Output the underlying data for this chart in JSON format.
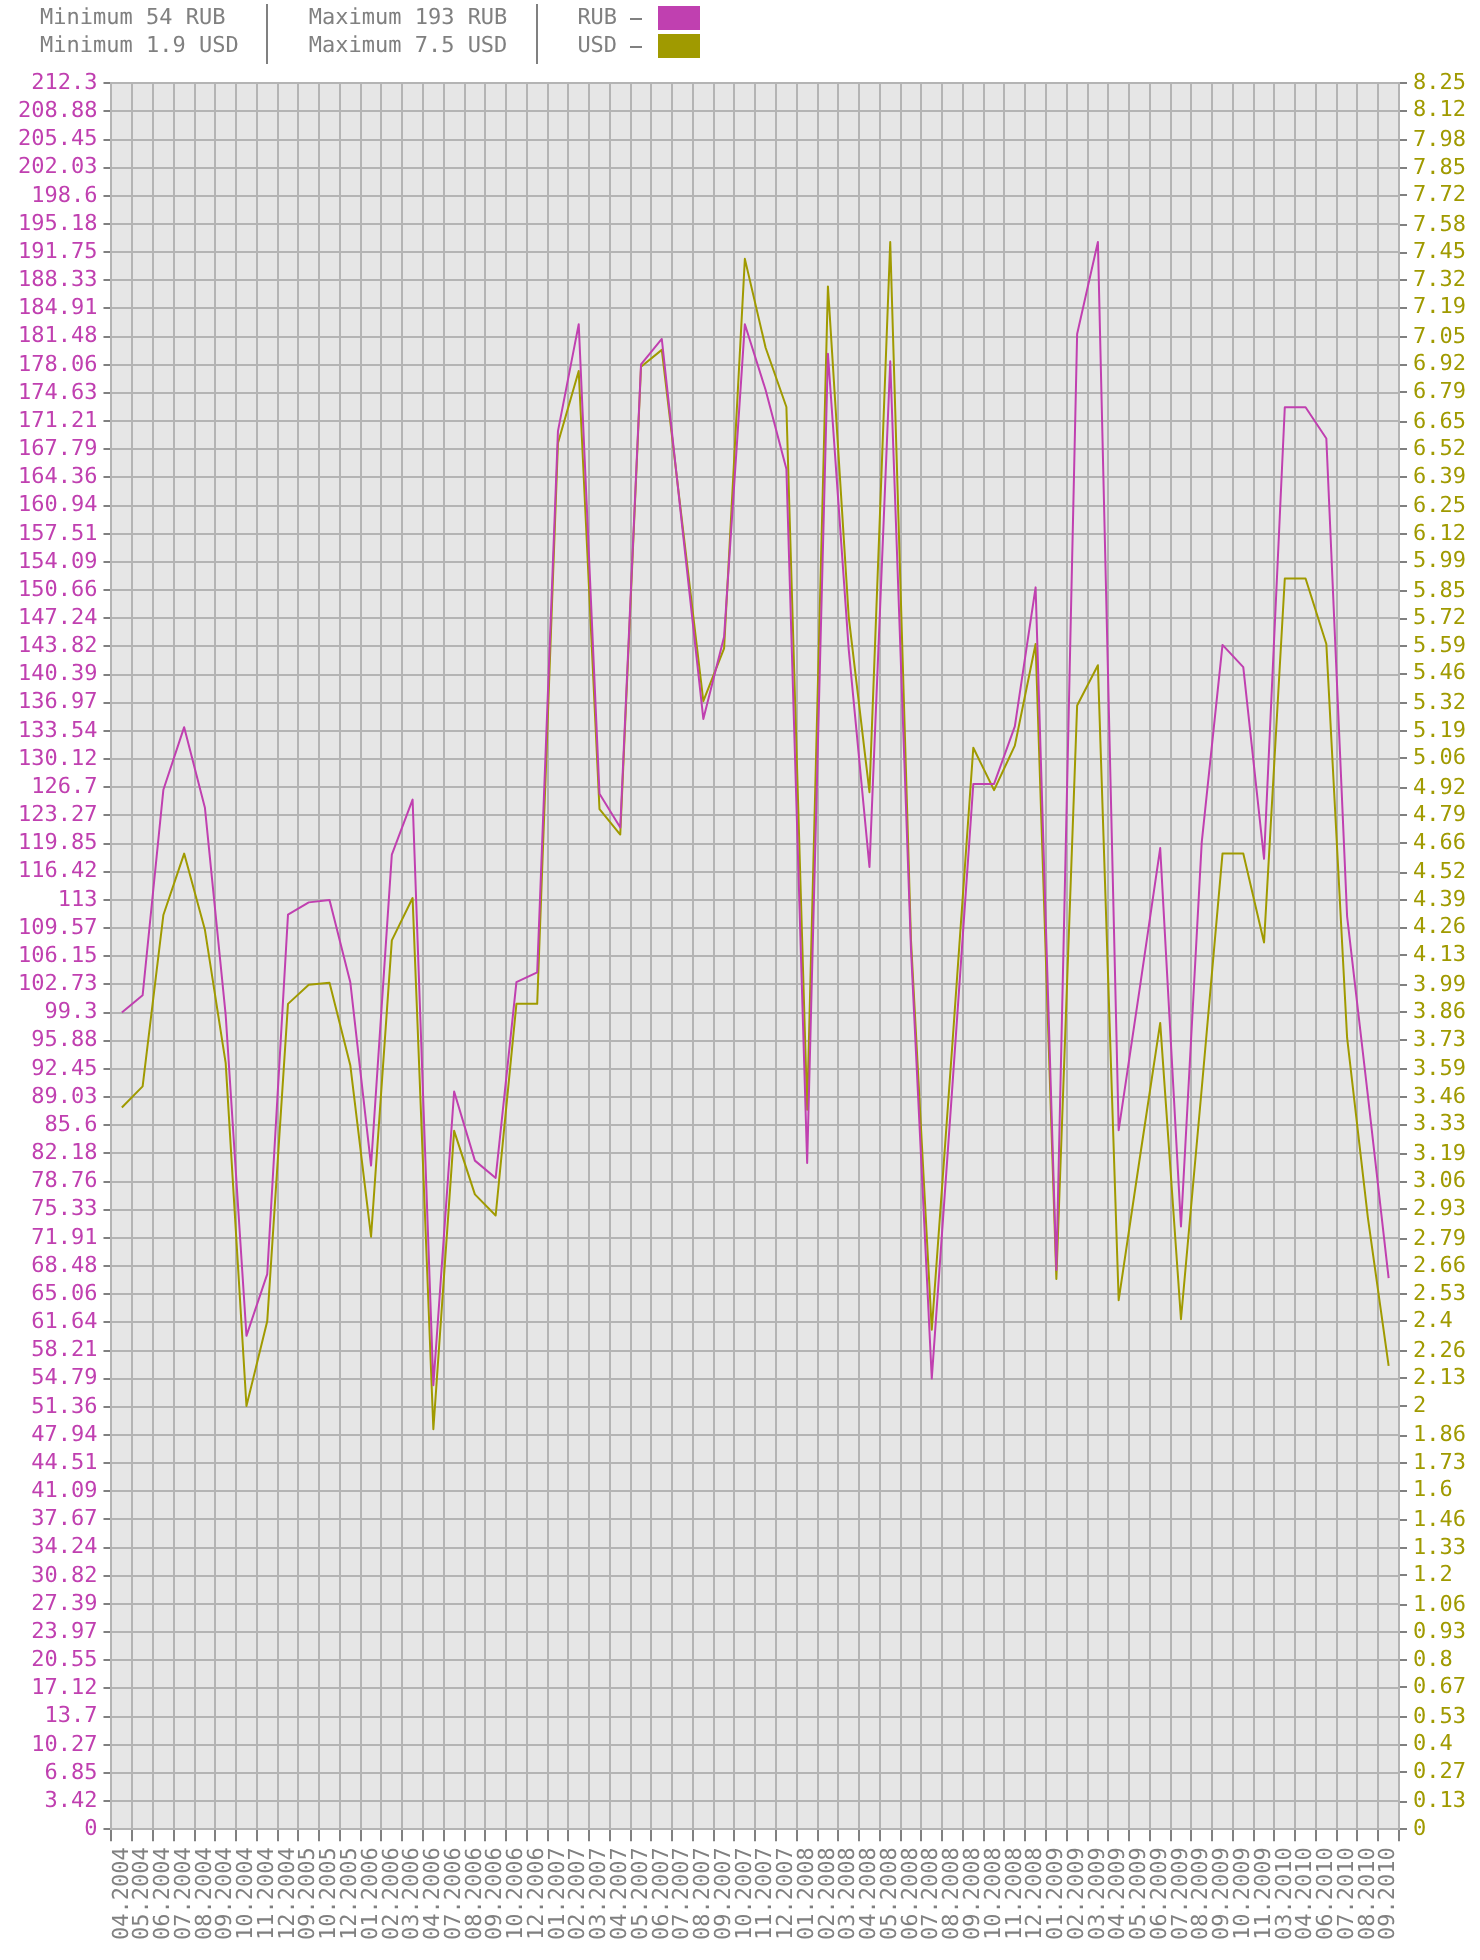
{
  "chart_data": {
    "type": "line",
    "annotations": [
      "Minimum 54 RUB",
      "Minimum 1.9 USD",
      "Maximum 193 RUB",
      "Maximum 7.5 USD"
    ],
    "categories": [
      "04.2004",
      "05.2004",
      "06.2004",
      "07.2004",
      "08.2004",
      "09.2004",
      "10.2004",
      "11.2004",
      "12.2004",
      "09.2005",
      "10.2005",
      "12.2005",
      "01.2006",
      "02.2006",
      "03.2006",
      "04.2006",
      "07.2006",
      "08.2006",
      "09.2006",
      "10.2006",
      "12.2006",
      "01.2007",
      "02.2007",
      "03.2007",
      "04.2007",
      "05.2007",
      "06.2007",
      "07.2007",
      "08.2007",
      "09.2007",
      "10.2007",
      "11.2007",
      "12.2007",
      "01.2008",
      "02.2008",
      "03.2008",
      "04.2008",
      "05.2008",
      "06.2008",
      "07.2008",
      "08.2008",
      "09.2008",
      "10.2008",
      "11.2008",
      "12.2008",
      "01.2009",
      "02.2009",
      "03.2009",
      "04.2009",
      "05.2009",
      "06.2009",
      "07.2009",
      "08.2009",
      "09.2009",
      "10.2009",
      "11.2009",
      "03.2010",
      "04.2010",
      "06.2010",
      "07.2010",
      "08.2010",
      "09.2010"
    ],
    "series": [
      {
        "name": "RUB",
        "color": "#c040b0",
        "values": [
          99.3,
          101.4,
          126.4,
          134,
          124.2,
          99,
          60,
          67.5,
          111.2,
          112.7,
          113,
          103,
          80.7,
          118.5,
          125.2,
          54,
          89.7,
          81.3,
          79.2,
          103,
          104.2,
          170,
          183,
          125.9,
          121.8,
          178.1,
          181.2,
          158,
          135,
          145,
          183,
          175,
          165.4,
          81,
          179.4,
          143.5,
          117,
          178.5,
          107,
          54.8,
          90.6,
          127.1,
          127.1,
          134.1,
          151,
          68,
          181.8,
          193,
          85,
          102,
          119.3,
          73.3,
          120,
          144,
          141.3,
          118,
          172.9,
          172.9,
          169.1,
          111,
          89.2,
          67
        ]
      },
      {
        "name": "USD",
        "color": "#a09a00",
        "axis": "y2",
        "values": [
          3.41,
          3.51,
          4.32,
          4.61,
          4.25,
          3.62,
          2.0,
          2.4,
          3.9,
          3.99,
          4.0,
          3.61,
          2.8,
          4.2,
          4.4,
          1.89,
          3.3,
          3.0,
          2.9,
          3.9,
          3.9,
          6.55,
          6.89,
          4.82,
          4.7,
          6.91,
          6.99,
          6.16,
          5.33,
          5.58,
          7.42,
          7.0,
          6.72,
          3.4,
          7.29,
          5.73,
          4.9,
          7.5,
          4.2,
          2.36,
          3.72,
          5.11,
          4.91,
          5.12,
          5.6,
          2.6,
          5.31,
          5.5,
          2.5,
          3.16,
          3.81,
          2.41,
          3.5,
          4.61,
          4.61,
          4.19,
          5.91,
          5.91,
          5.6,
          3.74,
          2.89,
          2.19
        ]
      }
    ],
    "ylim": [
      0,
      212.3
    ],
    "yticks": [
      0,
      3.42,
      6.85,
      10.27,
      13.7,
      17.12,
      20.55,
      23.97,
      27.39,
      30.82,
      34.24,
      37.67,
      41.09,
      44.51,
      47.94,
      51.36,
      54.79,
      58.21,
      61.64,
      65.06,
      68.48,
      71.91,
      75.33,
      78.76,
      82.18,
      85.6,
      89.03,
      92.45,
      95.88,
      99.3,
      102.73,
      106.15,
      109.57,
      113,
      116.42,
      119.85,
      123.27,
      126.7,
      130.12,
      133.54,
      136.97,
      140.39,
      143.82,
      147.24,
      150.66,
      154.09,
      157.51,
      160.94,
      164.36,
      167.79,
      171.21,
      174.63,
      178.06,
      181.48,
      184.91,
      188.33,
      191.75,
      195.18,
      198.6,
      202.03,
      205.45,
      208.88,
      212.3
    ],
    "y2lim": [
      0,
      8.25
    ],
    "y2ticks": [
      0,
      0.13,
      0.27,
      0.4,
      0.53,
      0.67,
      0.8,
      0.93,
      1.06,
      1.2,
      1.33,
      1.46,
      1.6,
      1.73,
      1.86,
      2,
      2.13,
      2.26,
      2.4,
      2.53,
      2.66,
      2.79,
      2.93,
      3.06,
      3.19,
      3.33,
      3.46,
      3.59,
      3.73,
      3.86,
      3.99,
      4.13,
      4.26,
      4.39,
      4.52,
      4.66,
      4.79,
      4.92,
      5.06,
      5.19,
      5.32,
      5.46,
      5.59,
      5.72,
      5.85,
      5.99,
      6.12,
      6.25,
      6.39,
      6.52,
      6.65,
      6.79,
      6.92,
      7.05,
      7.19,
      7.32,
      7.45,
      7.58,
      7.72,
      7.85,
      7.98,
      8.12,
      8.25
    ],
    "grid": true,
    "legend": "top"
  }
}
